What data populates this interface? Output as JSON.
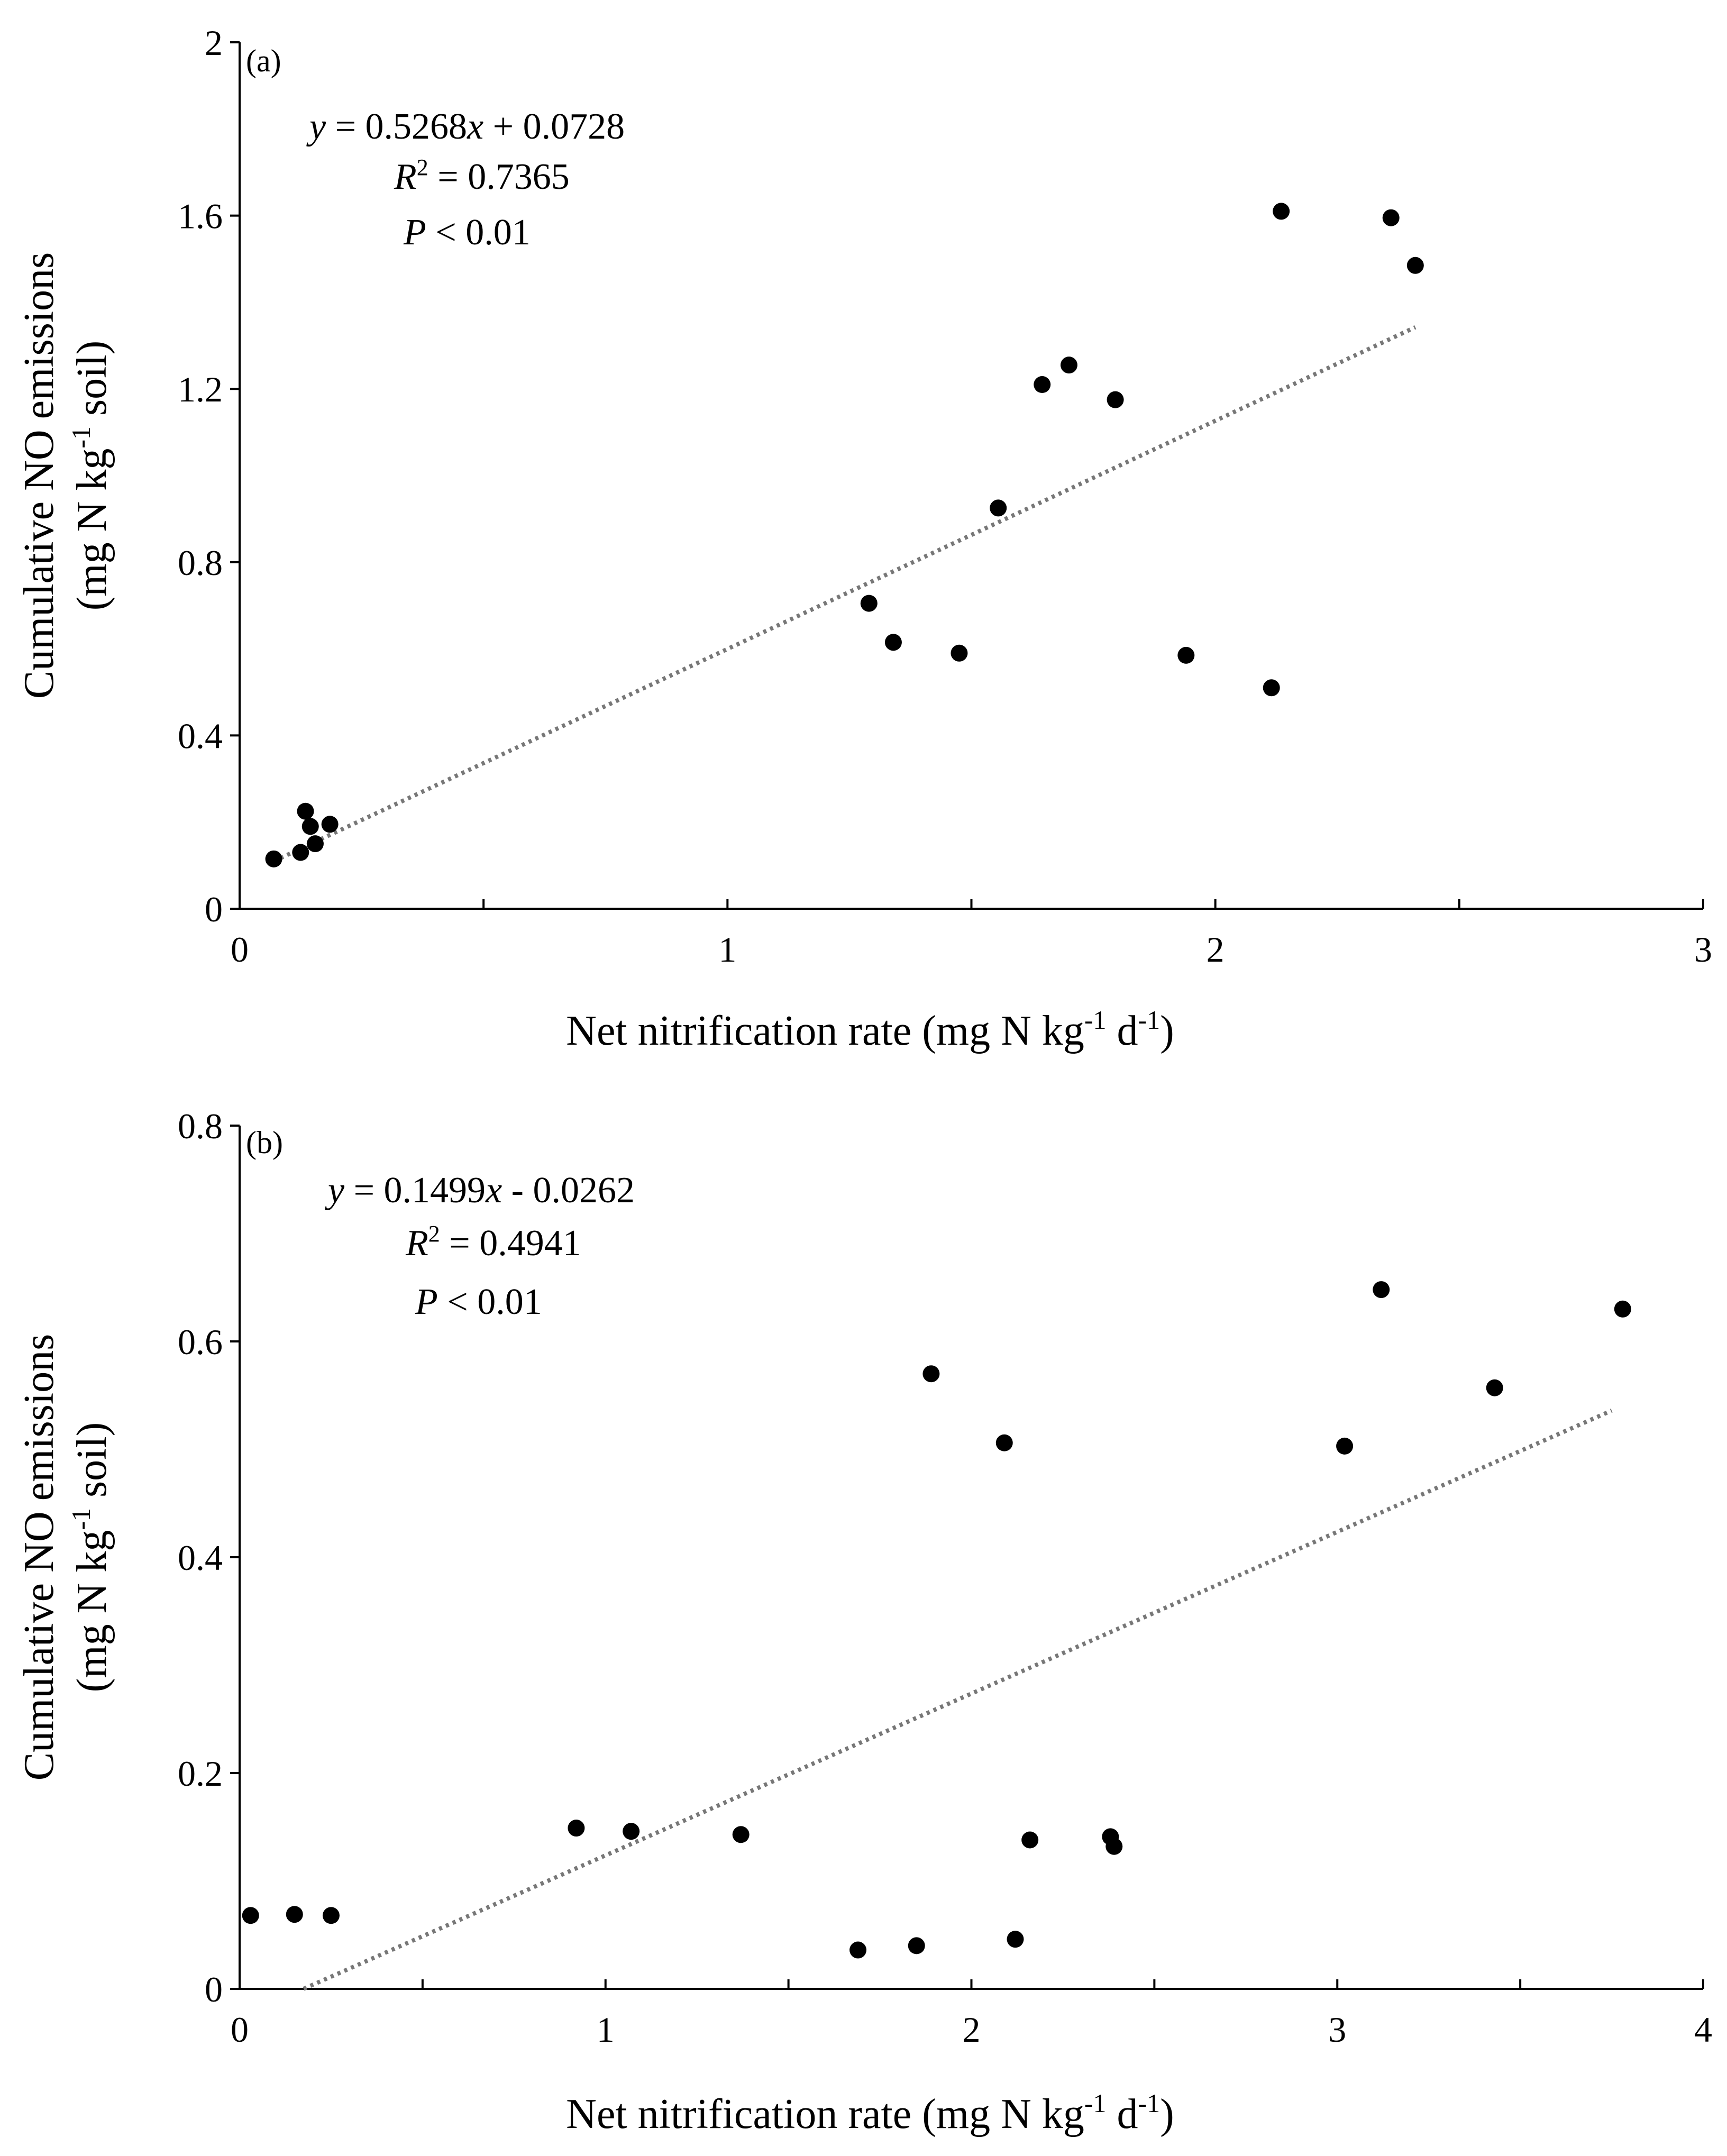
{
  "chart_data": [
    {
      "type": "scatter",
      "panel_label": "(a)",
      "xlabel": {
        "main": "Net nitrification  rate  (mg  N kg",
        "sup1": "-1",
        "mid": "  d",
        "sup2": "-1",
        "end": ")"
      },
      "ylabel": {
        "line1": "Cumulative  NO emissions",
        "line2_main": "(mg N kg",
        "line2_sup": "-1",
        "line2_end": " soil)"
      },
      "xlim": [
        0,
        3
      ],
      "ylim": [
        0,
        2
      ],
      "xticks": [
        0,
        1,
        2,
        3
      ],
      "xtick_labels": [
        "0",
        "1",
        "2",
        "3"
      ],
      "xminor": [
        0.5,
        1.5,
        2.5
      ],
      "yticks": [
        0,
        0.4,
        0.8,
        1.2,
        1.6,
        2
      ],
      "ytick_labels": [
        "0",
        "0.4",
        "0.8",
        "1.2",
        "1.6",
        "2"
      ],
      "equation": {
        "y": "y",
        "rhs": " = 0.5268",
        "x": "x",
        "tail": " + 0.0728"
      },
      "r2": {
        "r": "R",
        "sup": "2",
        "value": " = 0.7365"
      },
      "p": {
        "p": "P",
        "value": " < 0.01"
      },
      "trendline": {
        "slope": 0.5268,
        "intercept": 0.0728,
        "x_start": 0.07,
        "x_end": 2.41
      },
      "points": [
        [
          0.07,
          0.115
        ],
        [
          0.125,
          0.13
        ],
        [
          0.135,
          0.225
        ],
        [
          0.145,
          0.19
        ],
        [
          0.155,
          0.15
        ],
        [
          0.185,
          0.195
        ],
        [
          1.29,
          0.705
        ],
        [
          1.34,
          0.615
        ],
        [
          1.475,
          0.59
        ],
        [
          1.555,
          0.925
        ],
        [
          1.645,
          1.21
        ],
        [
          1.7,
          1.255
        ],
        [
          1.795,
          1.175
        ],
        [
          1.94,
          0.585
        ],
        [
          2.115,
          0.51
        ],
        [
          2.135,
          1.61
        ],
        [
          2.36,
          1.595
        ],
        [
          2.41,
          1.485
        ]
      ]
    },
    {
      "type": "scatter",
      "panel_label": "(b)",
      "xlabel": {
        "main": "Net nitrification  rate  (mg  N kg",
        "sup1": "-1",
        "mid": "  d",
        "sup2": "-1",
        "end": ")"
      },
      "ylabel": {
        "line1": "Cumulative  NO emissions",
        "line2_main": "(mg N kg",
        "line2_sup": "-1",
        "line2_end": " soil)"
      },
      "xlim": [
        0,
        4
      ],
      "ylim": [
        0,
        0.8
      ],
      "xticks": [
        0,
        1,
        2,
        3,
        4
      ],
      "xtick_labels": [
        "0",
        "1",
        "2",
        "3",
        "4"
      ],
      "xminor": [
        0.5,
        1.5,
        2.5,
        3.5
      ],
      "yticks": [
        0,
        0.2,
        0.4,
        0.6,
        0.8
      ],
      "ytick_labels": [
        "0",
        "0.2",
        "0.4",
        "0.6",
        "0.8"
      ],
      "equation": {
        "y": "y",
        "rhs": " = 0.1499",
        "x": "x",
        "tail": " - 0.0262"
      },
      "r2": {
        "r": "R",
        "sup": "2",
        "value": " = 0.4941"
      },
      "p": {
        "p": "P",
        "value": " < 0.01"
      },
      "trendline": {
        "slope": 0.1499,
        "intercept": -0.0262,
        "x_start": 0.175,
        "x_end": 3.75
      },
      "points": [
        [
          0.03,
          0.068
        ],
        [
          0.15,
          0.069
        ],
        [
          0.25,
          0.068
        ],
        [
          0.92,
          0.149
        ],
        [
          1.07,
          0.146
        ],
        [
          1.37,
          0.143
        ],
        [
          1.69,
          0.036
        ],
        [
          1.85,
          0.04
        ],
        [
          1.89,
          0.57
        ],
        [
          2.09,
          0.506
        ],
        [
          2.12,
          0.046
        ],
        [
          2.16,
          0.138
        ],
        [
          2.38,
          0.141
        ],
        [
          2.39,
          0.132
        ],
        [
          3.02,
          0.503
        ],
        [
          3.12,
          0.648
        ],
        [
          3.43,
          0.557
        ],
        [
          3.78,
          0.63
        ]
      ]
    }
  ]
}
